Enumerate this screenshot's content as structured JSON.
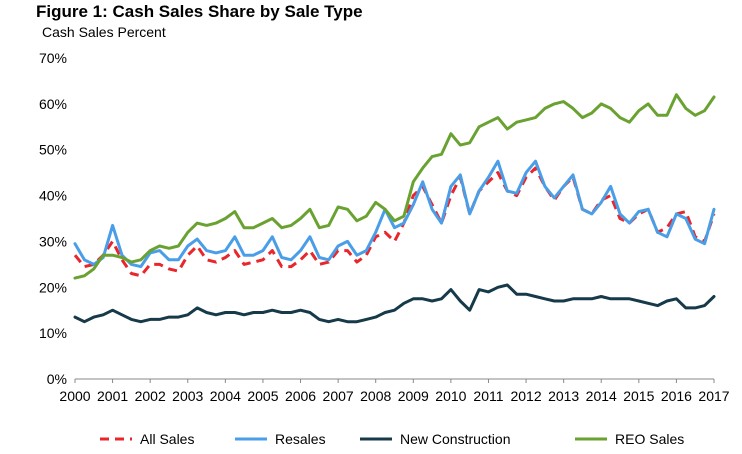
{
  "chart_data": {
    "type": "line",
    "title": "Figure 1: Cash Sales Share by Sale Type",
    "subtitle": "Cash Sales Percent",
    "xlabel": "",
    "ylabel": "",
    "x_ticks": [
      "2000",
      "2001",
      "2002",
      "2003",
      "2004",
      "2005",
      "2006",
      "2007",
      "2008",
      "2009",
      "2010",
      "2011",
      "2012",
      "2013",
      "2014",
      "2015",
      "2016",
      "2017"
    ],
    "y_ticks": [
      "0%",
      "10%",
      "20%",
      "30%",
      "40%",
      "50%",
      "60%",
      "70%"
    ],
    "xlim": [
      2000,
      2017
    ],
    "ylim": [
      0,
      70
    ],
    "grid": false,
    "legend": "bottom",
    "series": [
      {
        "name": "All Sales",
        "color": "#e8262c",
        "style": "dashed",
        "points": [
          [
            2000.0,
            27
          ],
          [
            2000.25,
            24.5
          ],
          [
            2000.5,
            25
          ],
          [
            2000.75,
            27
          ],
          [
            2001.0,
            30
          ],
          [
            2001.25,
            26
          ],
          [
            2001.5,
            23
          ],
          [
            2001.75,
            22.5
          ],
          [
            2002.0,
            25
          ],
          [
            2002.25,
            25
          ],
          [
            2002.5,
            24
          ],
          [
            2002.75,
            23.5
          ],
          [
            2003.0,
            27
          ],
          [
            2003.25,
            29
          ],
          [
            2003.5,
            26
          ],
          [
            2003.75,
            25.5
          ],
          [
            2004.0,
            26.5
          ],
          [
            2004.25,
            28
          ],
          [
            2004.5,
            25
          ],
          [
            2004.75,
            25.5
          ],
          [
            2005.0,
            26
          ],
          [
            2005.25,
            28
          ],
          [
            2005.5,
            24.5
          ],
          [
            2005.75,
            24.5
          ],
          [
            2006.0,
            26
          ],
          [
            2006.25,
            28
          ],
          [
            2006.5,
            25
          ],
          [
            2006.75,
            25.5
          ],
          [
            2007.0,
            28
          ],
          [
            2007.25,
            28
          ],
          [
            2007.5,
            25.5
          ],
          [
            2007.75,
            27
          ],
          [
            2008.0,
            31
          ],
          [
            2008.25,
            32
          ],
          [
            2008.5,
            30
          ],
          [
            2008.75,
            34
          ],
          [
            2009.0,
            40
          ],
          [
            2009.25,
            42
          ],
          [
            2009.5,
            38
          ],
          [
            2009.75,
            34
          ],
          [
            2010.0,
            40
          ],
          [
            2010.25,
            44
          ],
          [
            2010.5,
            36
          ],
          [
            2010.75,
            41
          ],
          [
            2011.0,
            43
          ],
          [
            2011.25,
            45
          ],
          [
            2011.5,
            41
          ],
          [
            2011.75,
            40
          ],
          [
            2012.0,
            44
          ],
          [
            2012.25,
            46
          ],
          [
            2012.5,
            42
          ],
          [
            2012.75,
            39
          ],
          [
            2013.0,
            42
          ],
          [
            2013.25,
            44
          ],
          [
            2013.5,
            37
          ],
          [
            2013.75,
            36
          ],
          [
            2014.0,
            39
          ],
          [
            2014.25,
            40
          ],
          [
            2014.5,
            35
          ],
          [
            2014.75,
            34
          ],
          [
            2015.0,
            36
          ],
          [
            2015.25,
            37
          ],
          [
            2015.5,
            32
          ],
          [
            2015.75,
            33
          ],
          [
            2016.0,
            36
          ],
          [
            2016.25,
            36.5
          ],
          [
            2016.5,
            31
          ],
          [
            2016.75,
            30
          ],
          [
            2017.0,
            36
          ]
        ]
      },
      {
        "name": "Resales",
        "color": "#4a9ee8",
        "style": "solid",
        "points": [
          [
            2000.0,
            29.5
          ],
          [
            2000.25,
            26
          ],
          [
            2000.5,
            25
          ],
          [
            2000.75,
            26.5
          ],
          [
            2001.0,
            33.5
          ],
          [
            2001.25,
            27
          ],
          [
            2001.5,
            25
          ],
          [
            2001.75,
            24.5
          ],
          [
            2002.0,
            27.5
          ],
          [
            2002.25,
            28
          ],
          [
            2002.5,
            26
          ],
          [
            2002.75,
            26
          ],
          [
            2003.0,
            29
          ],
          [
            2003.25,
            30.5
          ],
          [
            2003.5,
            28
          ],
          [
            2003.75,
            27.5
          ],
          [
            2004.0,
            28
          ],
          [
            2004.25,
            31
          ],
          [
            2004.5,
            27
          ],
          [
            2004.75,
            27
          ],
          [
            2005.0,
            28
          ],
          [
            2005.25,
            31
          ],
          [
            2005.5,
            26.5
          ],
          [
            2005.75,
            26
          ],
          [
            2006.0,
            28
          ],
          [
            2006.25,
            31
          ],
          [
            2006.5,
            26.5
          ],
          [
            2006.75,
            26
          ],
          [
            2007.0,
            29
          ],
          [
            2007.25,
            30
          ],
          [
            2007.5,
            27
          ],
          [
            2007.75,
            28
          ],
          [
            2008.0,
            32
          ],
          [
            2008.25,
            37
          ],
          [
            2008.5,
            33
          ],
          [
            2008.75,
            34
          ],
          [
            2009.0,
            38
          ],
          [
            2009.25,
            43
          ],
          [
            2009.5,
            37
          ],
          [
            2009.75,
            34
          ],
          [
            2010.0,
            42
          ],
          [
            2010.25,
            44.5
          ],
          [
            2010.5,
            36
          ],
          [
            2010.75,
            41
          ],
          [
            2011.0,
            44
          ],
          [
            2011.25,
            47.5
          ],
          [
            2011.5,
            41
          ],
          [
            2011.75,
            40.5
          ],
          [
            2012.0,
            45
          ],
          [
            2012.25,
            47.5
          ],
          [
            2012.5,
            42
          ],
          [
            2012.75,
            39.5
          ],
          [
            2013.0,
            42
          ],
          [
            2013.25,
            44.5
          ],
          [
            2013.5,
            37
          ],
          [
            2013.75,
            36
          ],
          [
            2014.0,
            38.5
          ],
          [
            2014.25,
            42
          ],
          [
            2014.5,
            36
          ],
          [
            2014.75,
            34
          ],
          [
            2015.0,
            36.5
          ],
          [
            2015.25,
            37
          ],
          [
            2015.5,
            32
          ],
          [
            2015.75,
            31
          ],
          [
            2016.0,
            36
          ],
          [
            2016.25,
            35
          ],
          [
            2016.5,
            30.5
          ],
          [
            2016.75,
            29.5
          ],
          [
            2017.0,
            37
          ]
        ]
      },
      {
        "name": "New Construction",
        "color": "#163a4a",
        "style": "solid",
        "points": [
          [
            2000.0,
            13.5
          ],
          [
            2000.25,
            12.5
          ],
          [
            2000.5,
            13.5
          ],
          [
            2000.75,
            14
          ],
          [
            2001.0,
            15
          ],
          [
            2001.25,
            14
          ],
          [
            2001.5,
            13
          ],
          [
            2001.75,
            12.5
          ],
          [
            2002.0,
            13
          ],
          [
            2002.25,
            13
          ],
          [
            2002.5,
            13.5
          ],
          [
            2002.75,
            13.5
          ],
          [
            2003.0,
            14
          ],
          [
            2003.25,
            15.5
          ],
          [
            2003.5,
            14.5
          ],
          [
            2003.75,
            14
          ],
          [
            2004.0,
            14.5
          ],
          [
            2004.25,
            14.5
          ],
          [
            2004.5,
            14
          ],
          [
            2004.75,
            14.5
          ],
          [
            2005.0,
            14.5
          ],
          [
            2005.25,
            15
          ],
          [
            2005.5,
            14.5
          ],
          [
            2005.75,
            14.5
          ],
          [
            2006.0,
            15
          ],
          [
            2006.25,
            14.5
          ],
          [
            2006.5,
            13
          ],
          [
            2006.75,
            12.5
          ],
          [
            2007.0,
            13
          ],
          [
            2007.25,
            12.5
          ],
          [
            2007.5,
            12.5
          ],
          [
            2007.75,
            13
          ],
          [
            2008.0,
            13.5
          ],
          [
            2008.25,
            14.5
          ],
          [
            2008.5,
            15
          ],
          [
            2008.75,
            16.5
          ],
          [
            2009.0,
            17.5
          ],
          [
            2009.25,
            17.5
          ],
          [
            2009.5,
            17
          ],
          [
            2009.75,
            17.5
          ],
          [
            2010.0,
            19.5
          ],
          [
            2010.25,
            17
          ],
          [
            2010.5,
            15
          ],
          [
            2010.75,
            19.5
          ],
          [
            2011.0,
            19
          ],
          [
            2011.25,
            20
          ],
          [
            2011.5,
            20.5
          ],
          [
            2011.75,
            18.5
          ],
          [
            2012.0,
            18.5
          ],
          [
            2012.25,
            18
          ],
          [
            2012.5,
            17.5
          ],
          [
            2012.75,
            17
          ],
          [
            2013.0,
            17
          ],
          [
            2013.25,
            17.5
          ],
          [
            2013.5,
            17.5
          ],
          [
            2013.75,
            17.5
          ],
          [
            2014.0,
            18
          ],
          [
            2014.25,
            17.5
          ],
          [
            2014.5,
            17.5
          ],
          [
            2014.75,
            17.5
          ],
          [
            2015.0,
            17
          ],
          [
            2015.25,
            16.5
          ],
          [
            2015.5,
            16
          ],
          [
            2015.75,
            17
          ],
          [
            2016.0,
            17.5
          ],
          [
            2016.25,
            15.5
          ],
          [
            2016.5,
            15.5
          ],
          [
            2016.75,
            16
          ],
          [
            2017.0,
            18
          ]
        ]
      },
      {
        "name": "REO Sales",
        "color": "#6aa232",
        "style": "solid",
        "points": [
          [
            2000.0,
            22
          ],
          [
            2000.25,
            22.5
          ],
          [
            2000.5,
            24
          ],
          [
            2000.75,
            27
          ],
          [
            2001.0,
            27
          ],
          [
            2001.25,
            26.5
          ],
          [
            2001.5,
            25.5
          ],
          [
            2001.75,
            26
          ],
          [
            2002.0,
            28
          ],
          [
            2002.25,
            29
          ],
          [
            2002.5,
            28.5
          ],
          [
            2002.75,
            29
          ],
          [
            2003.0,
            32
          ],
          [
            2003.25,
            34
          ],
          [
            2003.5,
            33.5
          ],
          [
            2003.75,
            34
          ],
          [
            2004.0,
            35
          ],
          [
            2004.25,
            36.5
          ],
          [
            2004.5,
            33
          ],
          [
            2004.75,
            33
          ],
          [
            2005.0,
            34
          ],
          [
            2005.25,
            35
          ],
          [
            2005.5,
            33
          ],
          [
            2005.75,
            33.5
          ],
          [
            2006.0,
            35
          ],
          [
            2006.25,
            37
          ],
          [
            2006.5,
            33
          ],
          [
            2006.75,
            33.5
          ],
          [
            2007.0,
            37.5
          ],
          [
            2007.25,
            37
          ],
          [
            2007.5,
            34.5
          ],
          [
            2007.75,
            35.5
          ],
          [
            2008.0,
            38.5
          ],
          [
            2008.25,
            37
          ],
          [
            2008.5,
            34.5
          ],
          [
            2008.75,
            35.5
          ],
          [
            2009.0,
            43
          ],
          [
            2009.25,
            46
          ],
          [
            2009.5,
            48.5
          ],
          [
            2009.75,
            49
          ],
          [
            2010.0,
            53.5
          ],
          [
            2010.25,
            51
          ],
          [
            2010.5,
            51.5
          ],
          [
            2010.75,
            55
          ],
          [
            2011.0,
            56
          ],
          [
            2011.25,
            57
          ],
          [
            2011.5,
            54.5
          ],
          [
            2011.75,
            56
          ],
          [
            2012.0,
            56.5
          ],
          [
            2012.25,
            57
          ],
          [
            2012.5,
            59
          ],
          [
            2012.75,
            60
          ],
          [
            2013.0,
            60.5
          ],
          [
            2013.25,
            59
          ],
          [
            2013.5,
            57
          ],
          [
            2013.75,
            58
          ],
          [
            2014.0,
            60
          ],
          [
            2014.25,
            59
          ],
          [
            2014.5,
            57
          ],
          [
            2014.75,
            56
          ],
          [
            2015.0,
            58.5
          ],
          [
            2015.25,
            60
          ],
          [
            2015.5,
            57.5
          ],
          [
            2015.75,
            57.5
          ],
          [
            2016.0,
            62
          ],
          [
            2016.25,
            59
          ],
          [
            2016.5,
            57.5
          ],
          [
            2016.75,
            58.5
          ],
          [
            2017.0,
            61.5
          ]
        ]
      }
    ]
  }
}
